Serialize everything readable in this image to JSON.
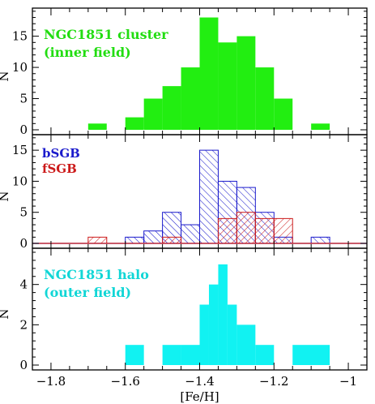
{
  "chart_data": [
    {
      "type": "bar",
      "panel": "top",
      "annotation": [
        "NGC1851 cluster",
        "(inner field)"
      ],
      "annotation_color": "#22dd11",
      "ylabel": "N",
      "ylim": [
        0,
        19.5
      ],
      "yticks": [
        0,
        5,
        10,
        15
      ],
      "series": [
        {
          "style": "solid",
          "color": "#22ee11",
          "bins": [
            {
              "x0": -1.7,
              "x1": -1.65,
              "y": 1
            },
            {
              "x0": -1.6,
              "x1": -1.55,
              "y": 2
            },
            {
              "x0": -1.55,
              "x1": -1.5,
              "y": 5
            },
            {
              "x0": -1.5,
              "x1": -1.45,
              "y": 7
            },
            {
              "x0": -1.45,
              "x1": -1.4,
              "y": 10
            },
            {
              "x0": -1.4,
              "x1": -1.35,
              "y": 18
            },
            {
              "x0": -1.35,
              "x1": -1.3,
              "y": 14
            },
            {
              "x0": -1.3,
              "x1": -1.25,
              "y": 15
            },
            {
              "x0": -1.25,
              "x1": -1.2,
              "y": 10
            },
            {
              "x0": -1.2,
              "x1": -1.15,
              "y": 5
            },
            {
              "x0": -1.1,
              "x1": -1.05,
              "y": 1
            }
          ]
        }
      ]
    },
    {
      "type": "bar",
      "panel": "middle",
      "legend": [
        {
          "name": "bSGB",
          "color": "#1a1acc"
        },
        {
          "name": "fSGB",
          "color": "#cc1a1a"
        }
      ],
      "ylabel": "N",
      "ylim": [
        0,
        17.5
      ],
      "yticks": [
        0,
        5,
        10,
        15
      ],
      "series": [
        {
          "name": "bSGB",
          "style": "hatch-backslash",
          "color": "#1a1acc",
          "bins": [
            {
              "x0": -1.6,
              "x1": -1.55,
              "y": 1
            },
            {
              "x0": -1.55,
              "x1": -1.5,
              "y": 2
            },
            {
              "x0": -1.5,
              "x1": -1.45,
              "y": 5
            },
            {
              "x0": -1.45,
              "x1": -1.4,
              "y": 3
            },
            {
              "x0": -1.4,
              "x1": -1.35,
              "y": 15
            },
            {
              "x0": -1.35,
              "x1": -1.3,
              "y": 10
            },
            {
              "x0": -1.3,
              "x1": -1.25,
              "y": 9
            },
            {
              "x0": -1.25,
              "x1": -1.2,
              "y": 5
            },
            {
              "x0": -1.2,
              "x1": -1.15,
              "y": 1
            },
            {
              "x0": -1.1,
              "x1": -1.05,
              "y": 1
            }
          ]
        },
        {
          "name": "fSGB",
          "style": "hatch-slash",
          "color": "#cc1a1a",
          "bins": [
            {
              "x0": -1.7,
              "x1": -1.65,
              "y": 1
            },
            {
              "x0": -1.5,
              "x1": -1.45,
              "y": 1
            },
            {
              "x0": -1.35,
              "x1": -1.3,
              "y": 4
            },
            {
              "x0": -1.3,
              "x1": -1.25,
              "y": 5
            },
            {
              "x0": -1.25,
              "x1": -1.2,
              "y": 4
            },
            {
              "x0": -1.2,
              "x1": -1.15,
              "y": 4
            }
          ]
        }
      ]
    },
    {
      "type": "bar",
      "panel": "bottom",
      "annotation": [
        "NGC1851 halo",
        "(outer field)"
      ],
      "annotation_color": "#11d6d6",
      "ylabel": "N",
      "ylim": [
        0,
        5.8
      ],
      "yticks": [
        0,
        2,
        4
      ],
      "xlabel": "[Fe/H]",
      "xlim": [
        -1.85,
        -0.95
      ],
      "xticks": [
        -1.8,
        -1.6,
        -1.4,
        -1.2,
        -1
      ],
      "xtick_labels": [
        "−1.8",
        "−1.6",
        "−1.4",
        "−1.2",
        "−1"
      ],
      "series": [
        {
          "style": "solid",
          "color": "#11f2f2",
          "bins": [
            {
              "x0": -1.6,
              "x1": -1.55,
              "y": 1
            },
            {
              "x0": -1.5,
              "x1": -1.45,
              "y": 1
            },
            {
              "x0": -1.45,
              "x1": -1.4,
              "y": 1
            },
            {
              "x0": -1.4,
              "x1": -1.375,
              "y": 3
            },
            {
              "x0": -1.375,
              "x1": -1.35,
              "y": 4
            },
            {
              "x0": -1.35,
              "x1": -1.325,
              "y": 5
            },
            {
              "x0": -1.325,
              "x1": -1.3,
              "y": 3
            },
            {
              "x0": -1.3,
              "x1": -1.25,
              "y": 2
            },
            {
              "x0": -1.25,
              "x1": -1.2,
              "y": 1
            },
            {
              "x0": -1.15,
              "x1": -1.05,
              "y": 1
            }
          ]
        }
      ]
    }
  ]
}
